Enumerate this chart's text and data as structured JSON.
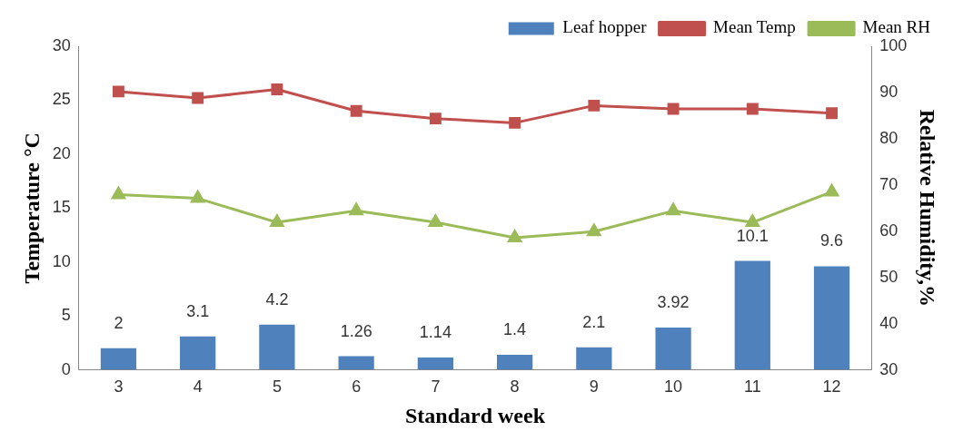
{
  "chart_data": {
    "type": "bar",
    "xlabel": "Standard week",
    "ylabel": "Temperature °C",
    "y2label": "Relative Humidity,%",
    "categories": [
      "3",
      "4",
      "5",
      "6",
      "7",
      "8",
      "9",
      "10",
      "11",
      "12"
    ],
    "series": [
      {
        "name": "Leaf hopper",
        "color": "#4f81bd",
        "values": [
          2,
          3.1,
          4.2,
          1.26,
          1.14,
          1.4,
          2.1,
          3.92,
          10.1,
          9.6
        ],
        "data_labels": true
      },
      {
        "name": "Mean Temp",
        "type": "line",
        "color": "#c0504d",
        "marker": "square",
        "values": [
          25.8,
          25.2,
          26.0,
          24.0,
          23.3,
          22.9,
          24.5,
          24.2,
          24.2,
          23.8
        ]
      },
      {
        "name": "Mean RH",
        "type": "line",
        "color": "#9bbb59",
        "marker": "triangle",
        "axis": "y2",
        "values": [
          67.9,
          67.1,
          61.9,
          64.4,
          61.9,
          58.6,
          59.9,
          64.4,
          61.9,
          68.5
        ]
      }
    ],
    "ylim": [
      0,
      30
    ],
    "yticks": [
      0,
      5,
      10,
      15,
      20,
      25,
      30
    ],
    "y2lim": [
      30,
      100
    ],
    "y2ticks": [
      30,
      40,
      50,
      60,
      70,
      80,
      90,
      100
    ],
    "grid": false,
    "legend": "top"
  }
}
